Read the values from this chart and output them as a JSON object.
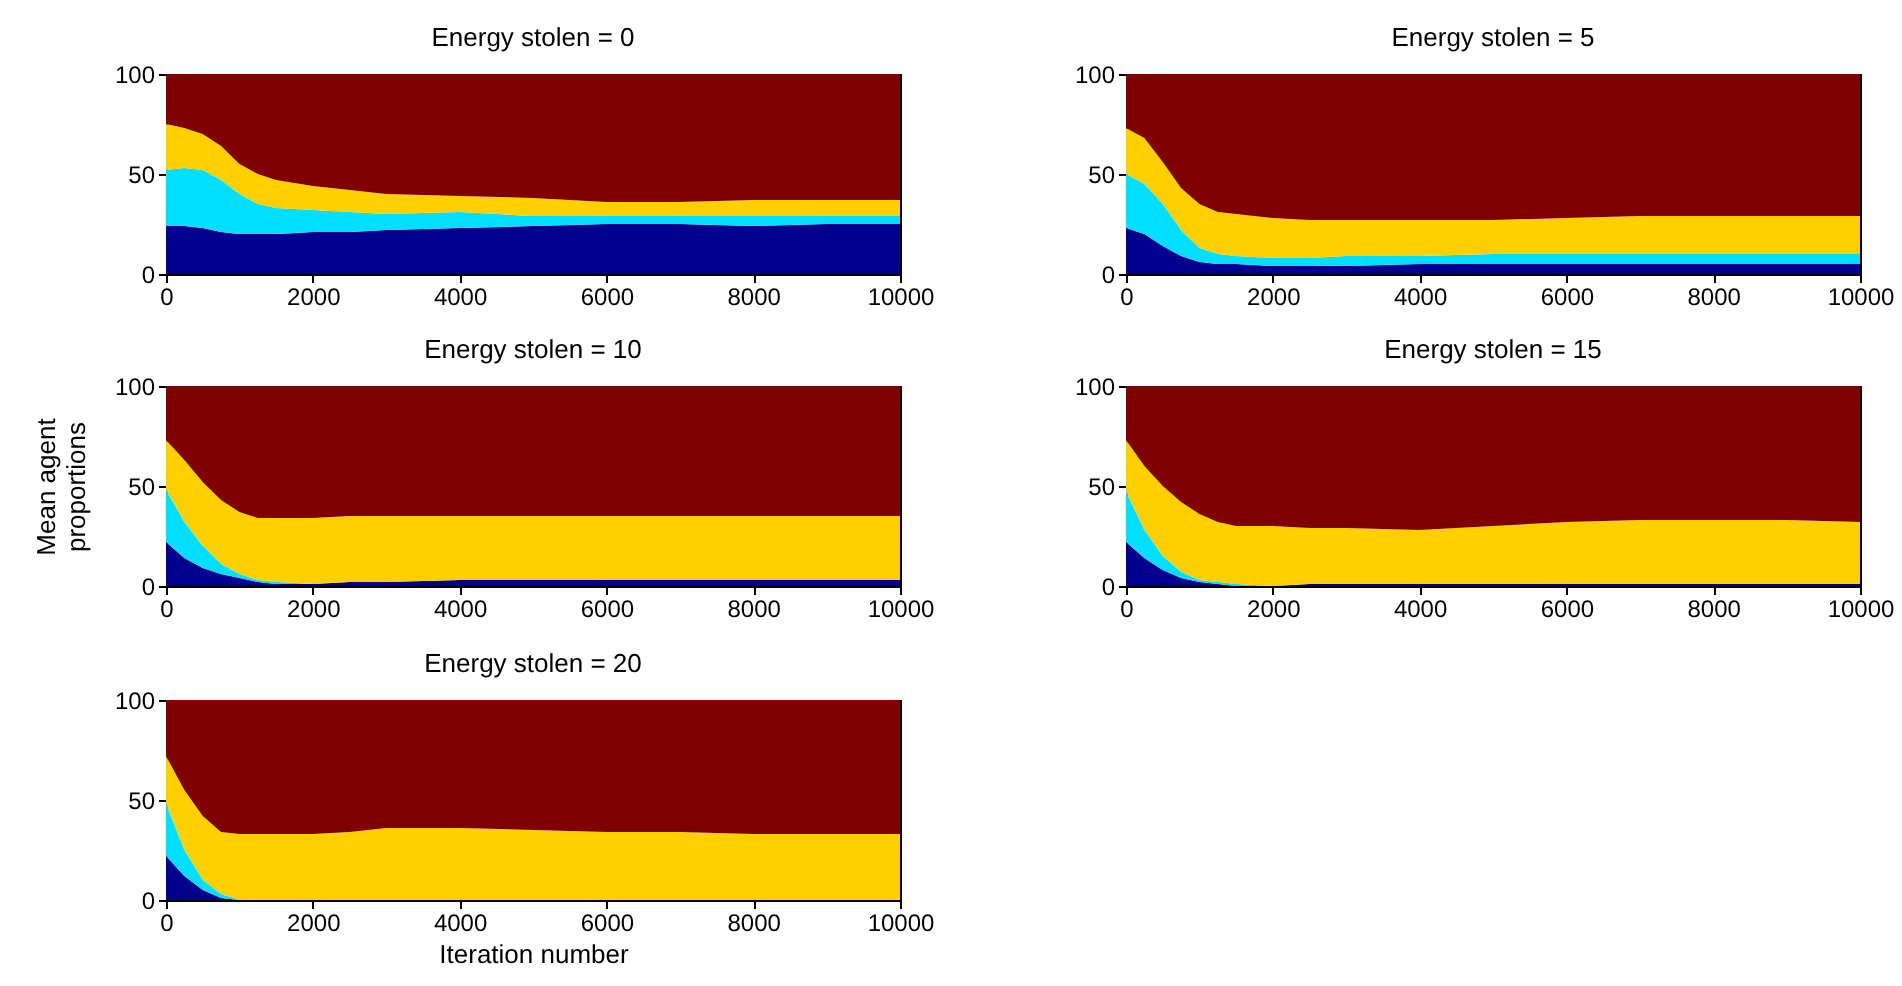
{
  "chart_data": [
    {
      "type": "area",
      "stacked": true,
      "title": "Energy stolen = 0",
      "x": [
        0,
        250,
        500,
        750,
        1000,
        1250,
        1500,
        2000,
        2500,
        3000,
        4000,
        5000,
        6000,
        7000,
        8000,
        9000,
        10000
      ],
      "xlim": [
        0,
        10000
      ],
      "xticks": [
        0,
        2000,
        4000,
        6000,
        8000,
        10000
      ],
      "ylim": [
        0,
        100
      ],
      "yticks": [
        0,
        50,
        100
      ],
      "grid": false,
      "legend": false,
      "series": [
        {
          "color": "#00008f",
          "values": [
            24,
            24,
            23,
            21,
            20,
            20,
            20,
            21,
            21,
            22,
            23,
            24,
            25,
            25,
            24,
            25,
            25
          ]
        },
        {
          "color": "#00dfff",
          "values": [
            28,
            29,
            29,
            26,
            20,
            15,
            13,
            11,
            10,
            8,
            8,
            5,
            4,
            4,
            5,
            4,
            4
          ]
        },
        {
          "color": "#ffcf00",
          "values": [
            23,
            20,
            18,
            17,
            15,
            15,
            14,
            12,
            11,
            10,
            8,
            9,
            7,
            7,
            8,
            8,
            8
          ]
        },
        {
          "color": "#800000",
          "values": [
            25,
            27,
            30,
            36,
            45,
            50,
            53,
            56,
            58,
            60,
            61,
            62,
            64,
            64,
            63,
            63,
            63
          ]
        }
      ]
    },
    {
      "type": "area",
      "stacked": true,
      "title": "Energy stolen = 5",
      "x": [
        0,
        250,
        500,
        750,
        1000,
        1250,
        1500,
        2000,
        2500,
        3000,
        4000,
        5000,
        6000,
        7000,
        8000,
        9000,
        10000
      ],
      "xlim": [
        0,
        10000
      ],
      "xticks": [
        0,
        2000,
        4000,
        6000,
        8000,
        10000
      ],
      "ylim": [
        0,
        100
      ],
      "yticks": [
        0,
        50,
        100
      ],
      "grid": false,
      "legend": false,
      "series": [
        {
          "color": "#00008f",
          "values": [
            23,
            20,
            14,
            9,
            6,
            5,
            5,
            4,
            4,
            4,
            5,
            5,
            5,
            5,
            5,
            5,
            5
          ]
        },
        {
          "color": "#00dfff",
          "values": [
            27,
            25,
            21,
            13,
            7,
            5,
            4,
            4,
            4,
            5,
            4,
            5,
            5,
            5,
            5,
            5,
            5
          ]
        },
        {
          "color": "#ffcf00",
          "values": [
            23,
            23,
            21,
            21,
            22,
            21,
            21,
            20,
            19,
            18,
            18,
            17,
            18,
            19,
            19,
            19,
            19
          ]
        },
        {
          "color": "#800000",
          "values": [
            27,
            32,
            44,
            57,
            65,
            69,
            70,
            72,
            73,
            73,
            73,
            73,
            72,
            71,
            71,
            71,
            71
          ]
        }
      ]
    },
    {
      "type": "area",
      "stacked": true,
      "title": "Energy stolen = 10",
      "ylabel": "Mean agent proportions",
      "x": [
        0,
        250,
        500,
        750,
        1000,
        1250,
        1500,
        2000,
        2500,
        3000,
        4000,
        5000,
        6000,
        7000,
        8000,
        9000,
        10000
      ],
      "xlim": [
        0,
        10000
      ],
      "xticks": [
        0,
        2000,
        4000,
        6000,
        8000,
        10000
      ],
      "ylim": [
        0,
        100
      ],
      "yticks": [
        0,
        50,
        100
      ],
      "grid": false,
      "legend": false,
      "series": [
        {
          "color": "#00008f",
          "values": [
            22,
            14,
            9,
            6,
            4,
            2,
            1,
            1,
            2,
            2,
            3,
            3,
            3,
            3,
            3,
            3,
            3
          ]
        },
        {
          "color": "#00dfff",
          "values": [
            26,
            18,
            11,
            5,
            2,
            1,
            1,
            0,
            0,
            0,
            0,
            0,
            0,
            0,
            0,
            0,
            0
          ]
        },
        {
          "color": "#ffcf00",
          "values": [
            25,
            31,
            32,
            32,
            31,
            31,
            32,
            33,
            33,
            33,
            32,
            32,
            32,
            32,
            32,
            32,
            32
          ]
        },
        {
          "color": "#800000",
          "values": [
            27,
            37,
            48,
            57,
            63,
            66,
            66,
            66,
            65,
            65,
            65,
            65,
            65,
            65,
            65,
            65,
            65
          ]
        }
      ]
    },
    {
      "type": "area",
      "stacked": true,
      "title": "Energy stolen = 15",
      "x": [
        0,
        250,
        500,
        750,
        1000,
        1250,
        1500,
        2000,
        2500,
        3000,
        4000,
        5000,
        6000,
        7000,
        8000,
        9000,
        10000
      ],
      "xlim": [
        0,
        10000
      ],
      "xticks": [
        0,
        2000,
        4000,
        6000,
        8000,
        10000
      ],
      "ylim": [
        0,
        100
      ],
      "yticks": [
        0,
        50,
        100
      ],
      "grid": false,
      "legend": false,
      "series": [
        {
          "color": "#00008f",
          "values": [
            22,
            14,
            8,
            4,
            2,
            1,
            0,
            0,
            1,
            1,
            1,
            1,
            1,
            1,
            1,
            1,
            1
          ]
        },
        {
          "color": "#00dfff",
          "values": [
            25,
            14,
            7,
            3,
            1,
            1,
            1,
            0,
            0,
            0,
            0,
            0,
            0,
            0,
            0,
            0,
            0
          ]
        },
        {
          "color": "#ffcf00",
          "values": [
            26,
            32,
            35,
            35,
            33,
            30,
            29,
            30,
            28,
            28,
            27,
            29,
            31,
            32,
            32,
            32,
            31
          ]
        },
        {
          "color": "#800000",
          "values": [
            27,
            40,
            50,
            58,
            64,
            68,
            70,
            70,
            71,
            71,
            72,
            70,
            68,
            67,
            67,
            67,
            68
          ]
        }
      ]
    },
    {
      "type": "area",
      "stacked": true,
      "title": "Energy stolen = 20",
      "xlabel": "Iteration number",
      "x": [
        0,
        250,
        500,
        750,
        1000,
        1250,
        1500,
        2000,
        2500,
        3000,
        4000,
        5000,
        6000,
        7000,
        8000,
        9000,
        10000
      ],
      "xlim": [
        0,
        10000
      ],
      "xticks": [
        0,
        2000,
        4000,
        6000,
        8000,
        10000
      ],
      "ylim": [
        0,
        100
      ],
      "yticks": [
        0,
        50,
        100
      ],
      "grid": false,
      "legend": false,
      "series": [
        {
          "color": "#00008f",
          "values": [
            22,
            12,
            5,
            1,
            0,
            0,
            0,
            0,
            0,
            0,
            0,
            0,
            0,
            0,
            0,
            0,
            0
          ]
        },
        {
          "color": "#00dfff",
          "values": [
            26,
            13,
            5,
            2,
            0,
            0,
            0,
            0,
            0,
            0,
            0,
            0,
            0,
            0,
            0,
            0,
            0
          ]
        },
        {
          "color": "#ffcf00",
          "values": [
            24,
            30,
            32,
            31,
            33,
            33,
            33,
            33,
            34,
            36,
            36,
            35,
            34,
            34,
            33,
            33,
            33
          ]
        },
        {
          "color": "#800000",
          "values": [
            28,
            45,
            58,
            66,
            67,
            67,
            67,
            67,
            66,
            64,
            64,
            65,
            66,
            66,
            67,
            67,
            67
          ]
        }
      ]
    }
  ]
}
